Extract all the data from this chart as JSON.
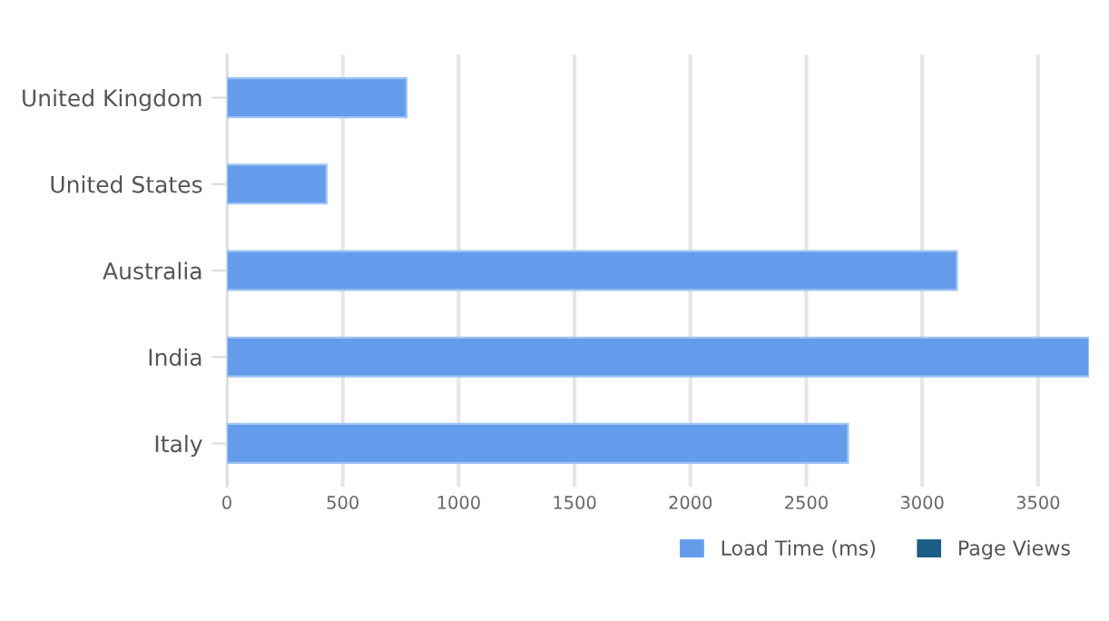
{
  "chart_data": {
    "type": "bar",
    "orientation": "horizontal",
    "categories": [
      "United Kingdom",
      "United States",
      "Australia",
      "India",
      "Italy"
    ],
    "series": [
      {
        "name": "Load Time (ms)",
        "color": "#639ceb",
        "values": [
          775,
          430,
          3150,
          3720,
          2680
        ]
      },
      {
        "name": "Page Views",
        "color": "#1b5d84",
        "values": [
          null,
          null,
          null,
          null,
          null
        ]
      }
    ],
    "xlim": [
      0,
      3720
    ],
    "xticks": [
      0,
      500,
      1000,
      1500,
      2000,
      2500,
      3000,
      3500
    ],
    "grid": "x",
    "legend": "bottom right"
  }
}
